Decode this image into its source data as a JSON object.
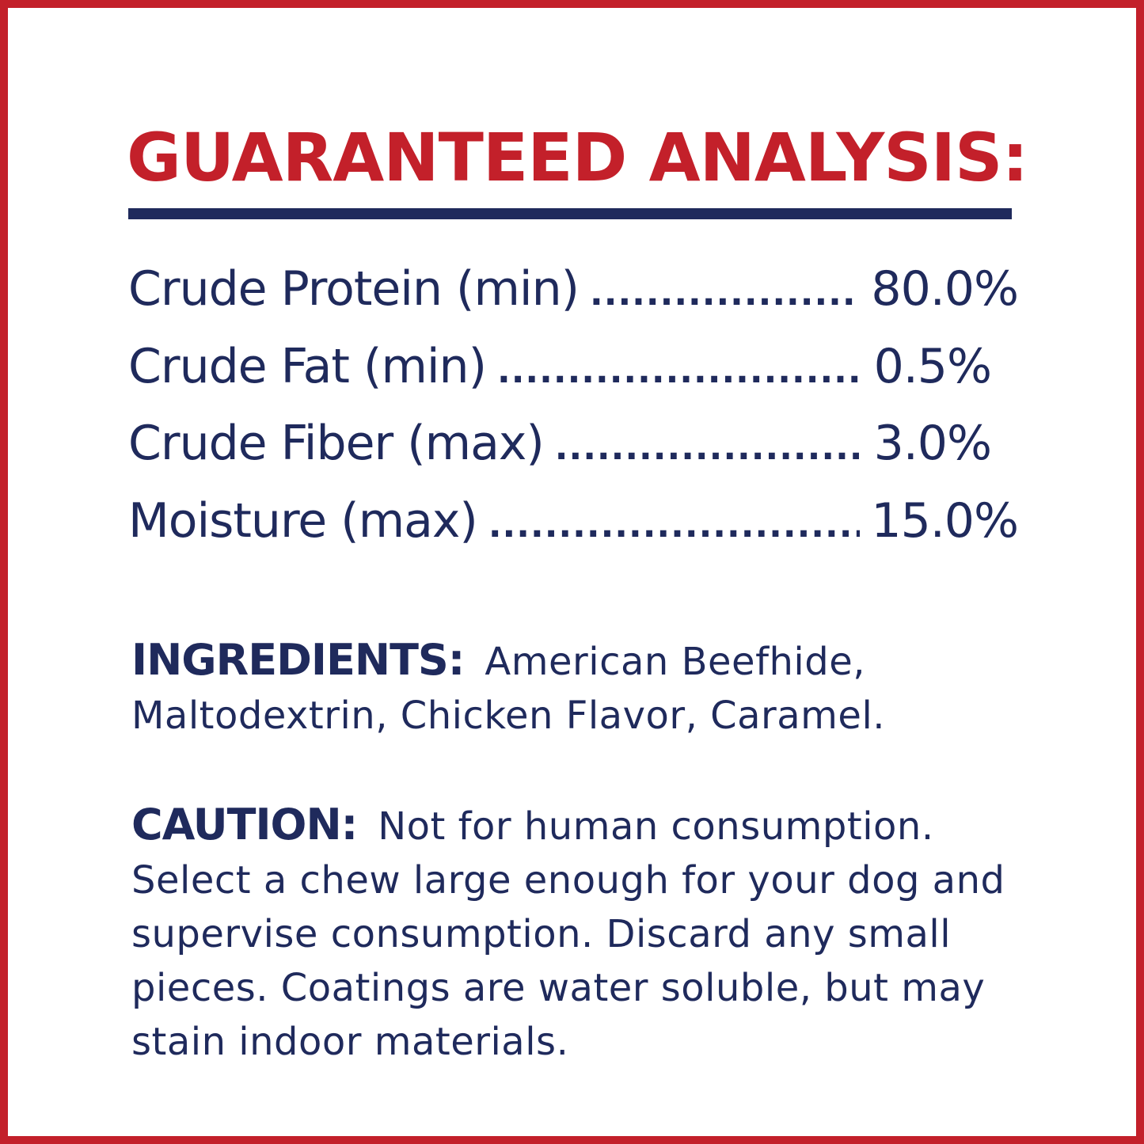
{
  "colors": {
    "border": "#c3202a",
    "title": "#c3202a",
    "text": "#1f2a5c"
  },
  "title": "GUARANTEED ANALYSIS:",
  "analysis": [
    {
      "label": "Crude Protein (min)",
      "value": "80.0%"
    },
    {
      "label": "Crude Fat (min)",
      "value": "0.5%"
    },
    {
      "label": "Crude Fiber (max)",
      "value": "3.0%"
    },
    {
      "label": "Moisture (max)",
      "value": "15.0%"
    }
  ],
  "ingredients": {
    "heading": "INGREDIENTS:",
    "text": "American Beefhide, Maltodextrin, Chicken Flavor, Caramel."
  },
  "caution": {
    "heading": "CAUTION:",
    "text": "Not for human consumption. Select a chew large enough for your dog and supervise consumption. Discard any small pieces. Coatings are water soluble, but may stain indoor materials."
  }
}
